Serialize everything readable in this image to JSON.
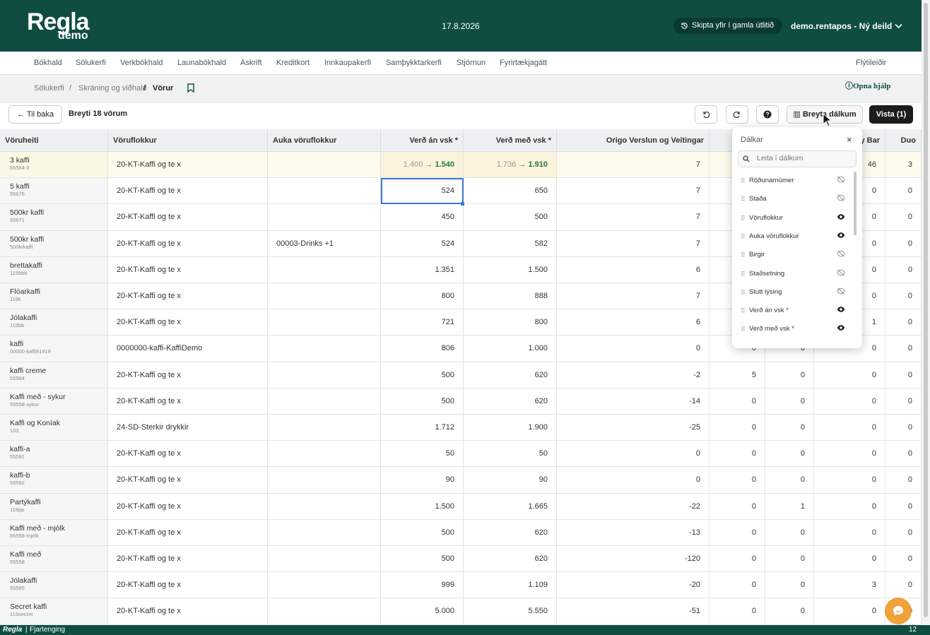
{
  "header": {
    "logo": "Regla",
    "logo_sub": "demo",
    "date": "17.8.2026",
    "old_look_button": "Skipta yfir í gamla útlitið",
    "user": "demo.rentapos - Ný deild"
  },
  "nav": {
    "items": [
      "Bókhald",
      "Sölukerfi",
      "Verkbókhald",
      "Launabókhald",
      "Áskrift",
      "Kreditkort",
      "Innkaupakerfi",
      "Samþykktarkerfi",
      "Stjórnun",
      "Fyrirtækjagátt"
    ],
    "shortcuts": "Flýtileiðir"
  },
  "breadcrumb": {
    "items": [
      "Sölukerfi",
      "Skráning og viðhald",
      "Vörur"
    ],
    "help": "Opna hjálp"
  },
  "toolbar": {
    "back": "Til baka",
    "status": "Breyti 18 vörum",
    "edit_columns": "Breyta dálkum",
    "save": "Vista (1)"
  },
  "table": {
    "headers": [
      "Vöruheiti",
      "Vöruflokkur",
      "Auka vöruflokkur",
      "Verð án vsk *",
      "Verð með vsk *",
      "Origo Verslun og Veitingar",
      null,
      null,
      "y Bar",
      "Duo"
    ],
    "rows": [
      {
        "name": "3 kaffi",
        "sku": "55564-3",
        "cells": [
          "20-KT-Kaffi og te x",
          null,
          {
            "from": "1.400",
            "to": "1.540"
          },
          {
            "from": "1.736",
            "to": "1.910"
          },
          "7",
          null,
          null,
          "46",
          "3"
        ]
      },
      {
        "name": "5 kaffi",
        "sku": "55676",
        "cells": [
          "20-KT-Kaffi og te x",
          null,
          "524",
          "650",
          "7",
          null,
          null,
          "0",
          "0"
        ]
      },
      {
        "name": "500kr kaffi",
        "sku": "55671",
        "cells": [
          "20-KT-Kaffi og te x",
          null,
          "450",
          "500",
          "7",
          null,
          null,
          "0",
          "0"
        ]
      },
      {
        "name": "500kr kaffi",
        "sku": "500krkaffi",
        "cells": [
          "20-KT-Kaffi og te x",
          "00003-Drinks +1",
          "524",
          "582",
          "7",
          null,
          null,
          "0",
          "0"
        ]
      },
      {
        "name": "brettakaffi",
        "sku": "119bbb",
        "cells": [
          "20-KT-Kaffi og te x",
          null,
          "1.351",
          "1.500",
          "6",
          null,
          null,
          "0",
          "0"
        ]
      },
      {
        "name": "Flóarkaffi",
        "sku": "119k",
        "cells": [
          "20-KT-Kaffi og te x",
          null,
          "800",
          "888",
          "7",
          null,
          null,
          "0",
          "0"
        ]
      },
      {
        "name": "Jólakaffi",
        "sku": "119bb",
        "cells": [
          "20-KT-Kaffi og te x",
          null,
          "721",
          "800",
          "6",
          null,
          null,
          "1",
          "0"
        ]
      },
      {
        "name": "kaffi",
        "sku": "00000-kaffi91919",
        "cells": [
          "0000000-kaffi-KaffiDemo",
          null,
          "806",
          "1.000",
          "0",
          "0",
          "0",
          "0",
          "0"
        ]
      },
      {
        "name": "kaffi creme",
        "sku": "55564",
        "cells": [
          "20-KT-Kaffi og te x",
          null,
          "500",
          "620",
          "-2",
          "5",
          "0",
          "0",
          "0"
        ]
      },
      {
        "name": "Kaffi með - sykur",
        "sku": "55558-sykur",
        "cells": [
          "20-KT-Kaffi og te x",
          null,
          "500",
          "620",
          "-14",
          "0",
          "0",
          "0",
          "0"
        ]
      },
      {
        "name": "Kaffi og Koníak",
        "sku": "133",
        "cells": [
          "24-SD-Sterkir drykkir",
          null,
          "1.712",
          "1.900",
          "-25",
          "0",
          "0",
          "0",
          "0"
        ]
      },
      {
        "name": "kaffi-a",
        "sku": "55591",
        "cells": [
          "20-KT-Kaffi og te x",
          null,
          "50",
          "50",
          "0",
          "0",
          "0",
          "0",
          "0"
        ]
      },
      {
        "name": "kaffi-b",
        "sku": "55592",
        "cells": [
          "20-KT-Kaffi og te x",
          null,
          "90",
          "90",
          "0",
          "0",
          "0",
          "0",
          "0"
        ]
      },
      {
        "name": "Partýkaffi",
        "sku": "119pp",
        "cells": [
          "20-KT-Kaffi og te x",
          null,
          "1.500",
          "1.665",
          "-22",
          "0",
          "1",
          "0",
          "0"
        ]
      },
      {
        "name": "Kaffi með - mjólk",
        "sku": "55558-mjólk",
        "cells": [
          "20-KT-Kaffi og te x",
          null,
          "500",
          "620",
          "-13",
          "0",
          "0",
          "0",
          "0"
        ]
      },
      {
        "name": "Kaffi með",
        "sku": "55558",
        "cells": [
          "20-KT-Kaffi og te x",
          null,
          "500",
          "620",
          "-120",
          "0",
          "0",
          "0",
          "0"
        ]
      },
      {
        "name": "Jólakaffi",
        "sku": "55565",
        "cells": [
          "20-KT-Kaffi og te x",
          null,
          "999",
          "1.109",
          "-20",
          "0",
          "0",
          "3",
          "0"
        ]
      },
      {
        "name": "Secret kaffi",
        "sku": "119secret",
        "cells": [
          "20-KT-Kaffi og te x",
          null,
          "5.000",
          "5.550",
          "-51",
          "0",
          "0",
          "0",
          "0"
        ]
      }
    ]
  },
  "columns_panel": {
    "title": "Dálkar",
    "search_placeholder": "Leita í dálkum",
    "items": [
      {
        "label": "Röðunarnúmer",
        "visible": false
      },
      {
        "label": "Staða",
        "visible": false
      },
      {
        "label": "Vöruflokkur",
        "visible": true
      },
      {
        "label": "Auka vöruflokkur",
        "visible": true
      },
      {
        "label": "Birgir",
        "visible": false
      },
      {
        "label": "Staðsetning",
        "visible": false
      },
      {
        "label": "Stutt lýsing",
        "visible": false
      },
      {
        "label": "Verð án vsk *",
        "visible": true
      },
      {
        "label": "Verð með vsk *",
        "visible": true
      }
    ]
  },
  "footer": {
    "brand": "Regla",
    "text": "Fjartenging",
    "page": "12"
  }
}
